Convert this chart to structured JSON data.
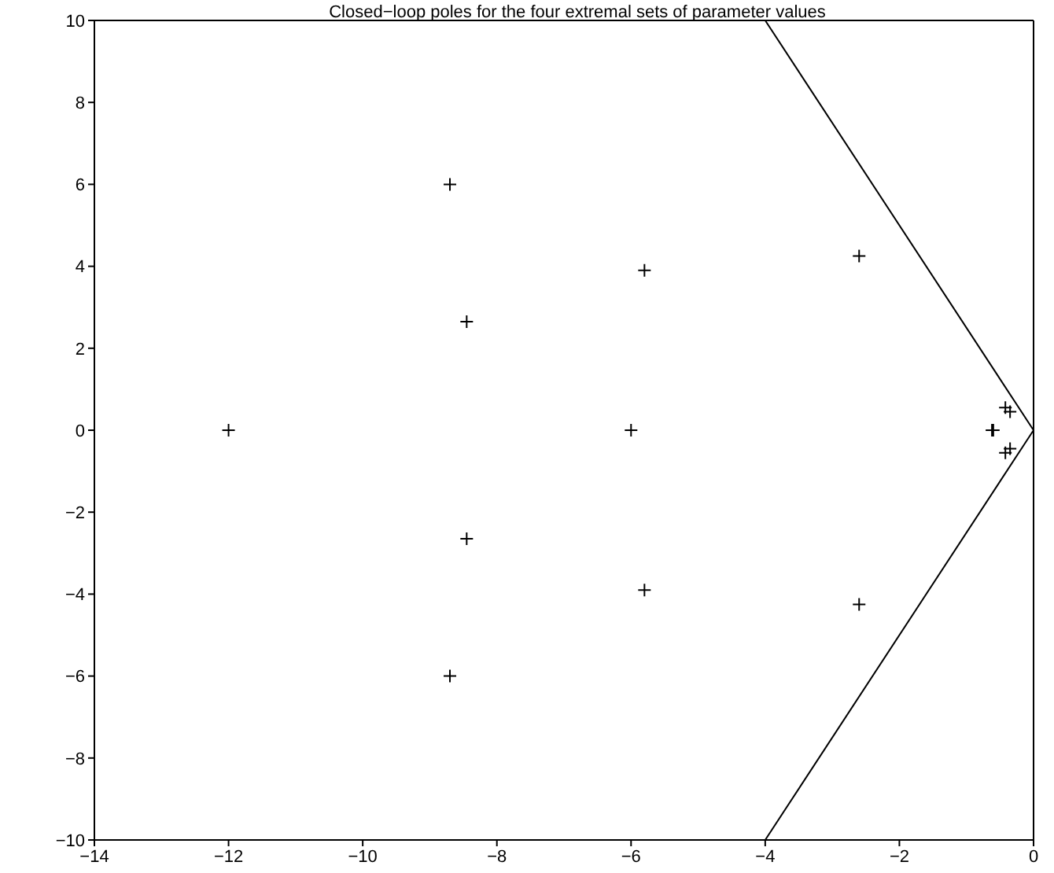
{
  "chart_data": {
    "type": "scatter",
    "title": "Closed−loop poles for the four extremal sets of parameter values",
    "series": [
      {
        "color": "#000000",
        "marker": "cross",
        "x": [
          -12,
          -8.7,
          -8.7,
          -8.45,
          -8.45,
          -6,
          -5.8,
          -5.8,
          -2.6,
          -2.6,
          -0.62,
          -0.6,
          -0.42,
          -0.35,
          -0.42,
          -0.35
        ],
        "values": [
          0,
          6,
          -6,
          2.65,
          -2.65,
          0,
          3.9,
          -3.9,
          4.25,
          -4.25,
          0,
          0,
          0.55,
          0.45,
          -0.55,
          -0.45
        ]
      },
      {
        "type": "line",
        "color": "#000000",
        "marker": "none",
        "line_style": "solid",
        "x": [
          -4,
          0,
          -4
        ],
        "values": [
          10,
          0,
          -10
        ]
      }
    ],
    "xlim": [
      -14,
      0
    ],
    "xticks": [
      -14,
      -12,
      -10,
      -8,
      -6,
      -4,
      -2,
      0
    ],
    "ylim": [
      -10,
      10
    ],
    "yticks": [
      -10,
      -8,
      -6,
      -4,
      -2,
      0,
      2,
      4,
      6,
      8,
      10
    ],
    "grid": false,
    "legend": false
  }
}
